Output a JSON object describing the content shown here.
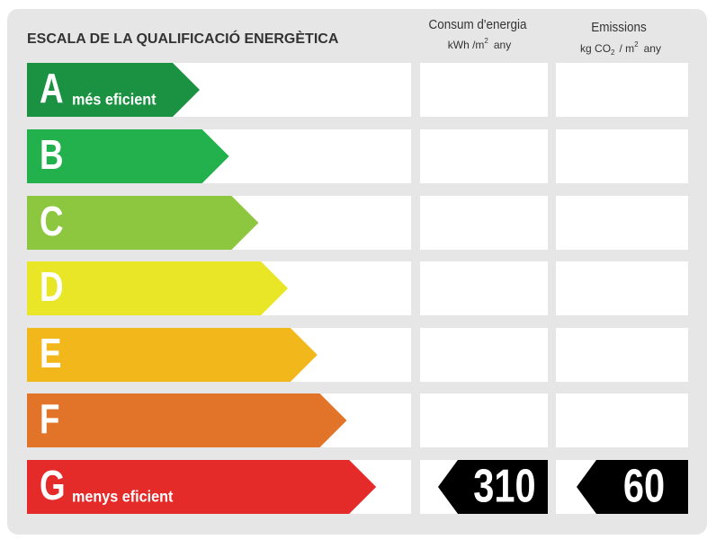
{
  "title": "ESCALA DE LA QUALIFICACIÓ ENERGÈTICA",
  "columns": [
    {
      "title": "Consum d'energia",
      "unit": [
        "kWh /m",
        "2",
        "any"
      ]
    },
    {
      "title": "Emissions",
      "unit": [
        "kg CO",
        "2",
        "/ m",
        "2",
        "any"
      ]
    }
  ],
  "rows": [
    {
      "letter": "A",
      "note": "més eficient",
      "color": "#1a9241"
    },
    {
      "letter": "B",
      "color": "#22b14c"
    },
    {
      "letter": "C",
      "color": "#8dc63f"
    },
    {
      "letter": "D",
      "color": "#e8e627"
    },
    {
      "letter": "E",
      "color": "#f2b71a"
    },
    {
      "letter": "F",
      "color": "#e2742a"
    },
    {
      "letter": "G",
      "note": "menys eficient",
      "color": "#e42b2a",
      "energy": 310,
      "emissions": 60
    }
  ]
}
